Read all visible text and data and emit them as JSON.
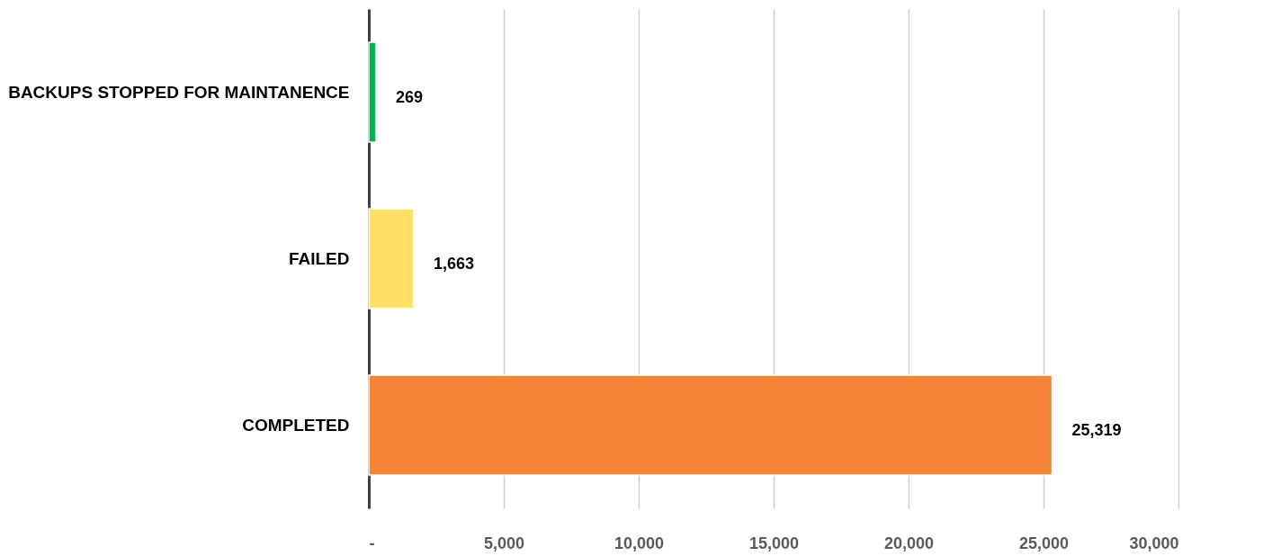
{
  "chart_data": {
    "type": "bar",
    "orientation": "horizontal",
    "categories": [
      "BACKUPS STOPPED FOR MAINTANENCE",
      "FAILED",
      "COMPLETED"
    ],
    "values": [
      269,
      1663,
      25319
    ],
    "colors": [
      "#00b050",
      "#ffe066",
      "#f58536"
    ],
    "value_labels": [
      "269",
      "1,663",
      "25,319"
    ],
    "xlim": [
      0,
      30000
    ],
    "xticks": [
      {
        "value": 0,
        "label": "-"
      },
      {
        "value": 5000,
        "label": "5,000"
      },
      {
        "value": 10000,
        "label": "10,000"
      },
      {
        "value": 15000,
        "label": "15,000"
      },
      {
        "value": 20000,
        "label": "20,000"
      },
      {
        "value": 25000,
        "label": "25,000"
      },
      {
        "value": 30000,
        "label": "30,000"
      }
    ],
    "grid": "x",
    "legend": false
  }
}
